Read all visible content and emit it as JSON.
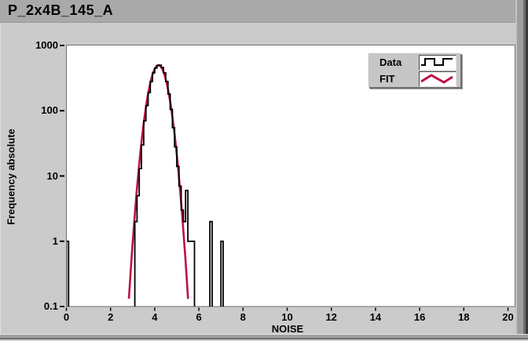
{
  "window": {
    "title": "P_2x4B_145_A"
  },
  "legend": {
    "items": [
      {
        "label": "Data",
        "icon": "step-line-icon"
      },
      {
        "label": "FIT",
        "icon": "zigzag-line-icon"
      }
    ]
  },
  "colors": {
    "title_bar": "#A9A9A9",
    "panel_bg": "#CBCBCB",
    "plot_bg": "#FFFFFF",
    "plot_border": "#6F6F6F",
    "data_series": "#000000",
    "fit_series": "#BF1141",
    "text": "#000000"
  },
  "chart_data": {
    "type": "bar",
    "subtype": "histogram-with-fit",
    "title": "P_2x4B_145_A",
    "xlabel": "NOISE",
    "ylabel": "Frequency absolute",
    "x_range": [
      0,
      20
    ],
    "y_scale": "log",
    "y_range": [
      0.1,
      1000
    ],
    "x_ticks": [
      0,
      2,
      4,
      6,
      8,
      10,
      12,
      14,
      16,
      18,
      20
    ],
    "y_ticks": [
      "1000",
      "100",
      "10",
      "1",
      "0.1"
    ],
    "y_tick_values": [
      1000,
      100,
      10,
      1,
      0.1
    ],
    "grid": false,
    "legend_position": "top-right",
    "bin_width": 0.1,
    "series": [
      {
        "name": "Data",
        "type": "step-histogram",
        "color": "#000000",
        "bins": [
          {
            "x": 0.0,
            "count": 1
          },
          {
            "x": 3.1,
            "count": 2
          },
          {
            "x": 3.2,
            "count": 5
          },
          {
            "x": 3.3,
            "count": 13
          },
          {
            "x": 3.4,
            "count": 30
          },
          {
            "x": 3.5,
            "count": 70
          },
          {
            "x": 3.6,
            "count": 120
          },
          {
            "x": 3.7,
            "count": 190
          },
          {
            "x": 3.8,
            "count": 280
          },
          {
            "x": 3.9,
            "count": 380
          },
          {
            "x": 4.0,
            "count": 450
          },
          {
            "x": 4.1,
            "count": 490
          },
          {
            "x": 4.2,
            "count": 500
          },
          {
            "x": 4.3,
            "count": 460
          },
          {
            "x": 4.4,
            "count": 380
          },
          {
            "x": 4.5,
            "count": 280
          },
          {
            "x": 4.6,
            "count": 180
          },
          {
            "x": 4.7,
            "count": 105
          },
          {
            "x": 4.8,
            "count": 55
          },
          {
            "x": 4.9,
            "count": 28
          },
          {
            "x": 5.0,
            "count": 14
          },
          {
            "x": 5.1,
            "count": 7
          },
          {
            "x": 5.2,
            "count": 3
          },
          {
            "x": 5.3,
            "count": 2
          },
          {
            "x": 5.4,
            "count": 6
          },
          {
            "x": 5.5,
            "count": 1
          },
          {
            "x": 5.6,
            "count": 1
          },
          {
            "x": 5.7,
            "count": 1
          },
          {
            "x": 6.5,
            "count": 2
          },
          {
            "x": 7.0,
            "count": 1
          }
        ]
      },
      {
        "name": "FIT",
        "type": "gaussian",
        "color": "#BF1141",
        "amplitude": 500,
        "mean": 4.17,
        "sigma": 0.33
      }
    ]
  }
}
